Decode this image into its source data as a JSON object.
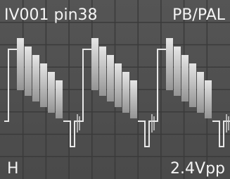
{
  "screen": {
    "top_left": "IV001 pin38",
    "top_right": "PB/PAL",
    "bottom_left": "H",
    "bottom_right": "2.4Vpp"
  }
}
